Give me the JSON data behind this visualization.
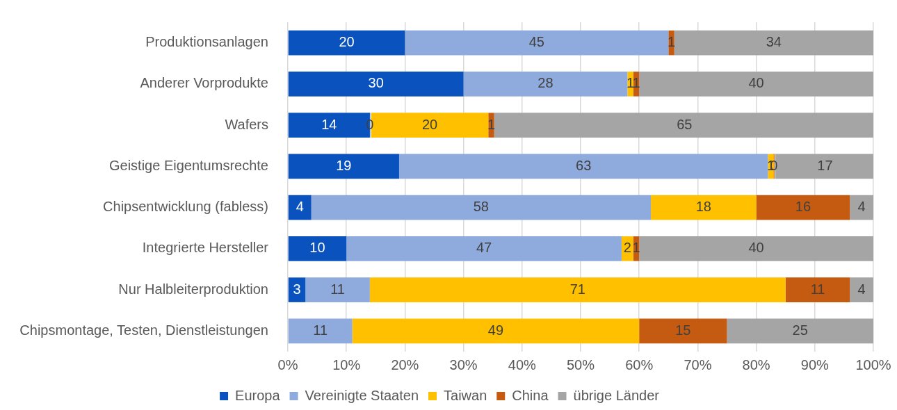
{
  "chart_data": {
    "type": "bar",
    "orientation": "horizontal",
    "stacked": true,
    "data_labels": true,
    "grid": "x",
    "legend": "bottom",
    "categories": [
      "Produktionsanlagen",
      "Anderer Vorprodukte",
      "Wafers",
      "Geistige Eigentumsrechte",
      "Chipsentwicklung (fabless)",
      "Integrierte Hersteller",
      "Nur Halbleiterproduktion",
      "Chipsmontage, Testen, Dienstleistungen"
    ],
    "series": [
      {
        "name": "Europa",
        "color": "#0a53be",
        "values": [
          20,
          30,
          14,
          19,
          4,
          10,
          3,
          null
        ]
      },
      {
        "name": "Vereinigte Staaten",
        "color": "#8faadc",
        "values": [
          45,
          28,
          0,
          63,
          58,
          47,
          11,
          11
        ]
      },
      {
        "name": "Taiwan",
        "color": "#ffc000",
        "values": [
          null,
          1,
          20,
          1,
          18,
          2,
          71,
          49
        ]
      },
      {
        "name": "China",
        "color": "#c55a11",
        "values": [
          1,
          1,
          1,
          0,
          16,
          1,
          11,
          15
        ]
      },
      {
        "name": "übrige Länder",
        "color": "#a5a5a5",
        "values": [
          34,
          40,
          65,
          17,
          4,
          40,
          4,
          25
        ]
      }
    ],
    "xlim": [
      0,
      100
    ],
    "xticks": [
      {
        "value": 0,
        "label": "0%"
      },
      {
        "value": 10,
        "label": "10%"
      },
      {
        "value": 20,
        "label": "20%"
      },
      {
        "value": 30,
        "label": "30%"
      },
      {
        "value": 40,
        "label": "40%"
      },
      {
        "value": 50,
        "label": "50%"
      },
      {
        "value": 60,
        "label": "60%"
      },
      {
        "value": 70,
        "label": "70%"
      },
      {
        "value": 80,
        "label": "80%"
      },
      {
        "value": 90,
        "label": "90%"
      },
      {
        "value": 100,
        "label": "100%"
      }
    ]
  }
}
